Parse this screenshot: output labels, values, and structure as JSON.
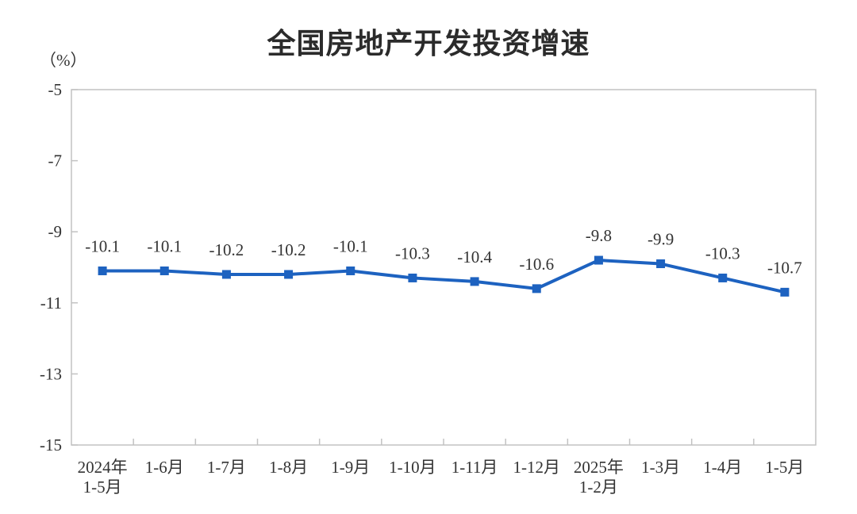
{
  "page": {
    "title": "全国房地产开发投资增速",
    "unit_label": "（%）"
  },
  "chart_data": {
    "type": "line",
    "title": "全国房地产开发投资增速",
    "xlabel": "",
    "ylabel": "（%）",
    "categories": [
      "2024年\n1-5月",
      "1-6月",
      "1-7月",
      "1-8月",
      "1-9月",
      "1-10月",
      "1-11月",
      "1-12月",
      "2025年\n1-2月",
      "1-3月",
      "1-4月",
      "1-5月"
    ],
    "values": [
      -10.1,
      -10.1,
      -10.2,
      -10.2,
      -10.1,
      -10.3,
      -10.4,
      -10.6,
      -9.8,
      -9.9,
      -10.3,
      -10.7
    ],
    "point_labels": [
      "-10.1",
      "-10.1",
      "-10.2",
      "-10.2",
      "-10.1",
      "-10.3",
      "-10.4",
      "-10.6",
      "-9.8",
      "-9.9",
      "-10.3",
      "-10.7"
    ],
    "y_ticks": [
      -5,
      -7,
      -9,
      -11,
      -13,
      -15
    ],
    "y_tick_labels": [
      "-5",
      "-7",
      "-9",
      "-11",
      "-13",
      "-15"
    ],
    "ylim": [
      -15,
      -5
    ],
    "grid": false,
    "legend_position": "none",
    "marker": "square",
    "series_color": "#1d62c0",
    "axis_color": "#c2c2c2",
    "text_color": "#333333"
  }
}
